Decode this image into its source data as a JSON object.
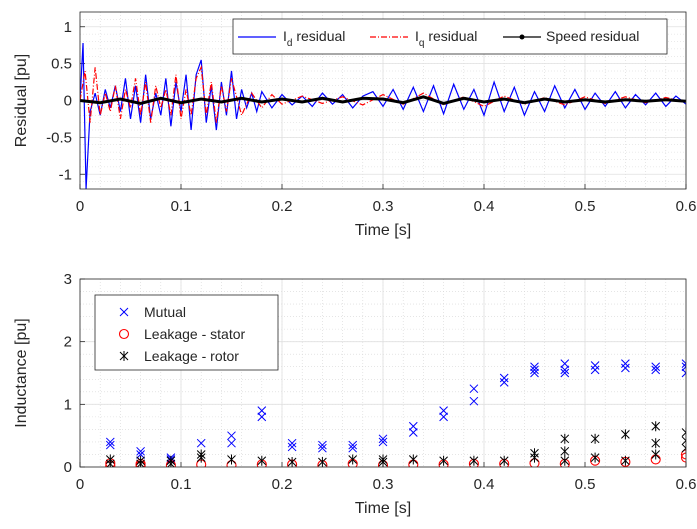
{
  "chart_data": [
    {
      "type": "line",
      "xlabel": "Time [s]",
      "ylabel": "Residual [pu]",
      "xlim": [
        0,
        0.6
      ],
      "ylim": [
        -1.2,
        1.2
      ],
      "xticks": [
        "0",
        "0.1",
        "0.2",
        "0.3",
        "0.4",
        "0.5",
        "0.6"
      ],
      "yticks": [
        "-1",
        "-0.5",
        "0",
        "0.5",
        "1"
      ],
      "grid": true,
      "legend_location": "top-right",
      "legend": [
        {
          "base": "I",
          "sub": "d",
          "rest": " residual",
          "color": "#0000ff",
          "style": "solid"
        },
        {
          "base": "I",
          "sub": "q",
          "rest": " residual",
          "color": "#ff0000",
          "style": "dashdot"
        },
        {
          "base": "Speed residual",
          "sub": "",
          "rest": "",
          "color": "#000000",
          "style": "solid-dot"
        }
      ],
      "series": [
        {
          "name": "Id residual",
          "color": "#0000ff",
          "x": [
            0.0,
            0.003,
            0.006,
            0.01,
            0.015,
            0.02,
            0.025,
            0.03,
            0.035,
            0.04,
            0.045,
            0.05,
            0.055,
            0.06,
            0.065,
            0.07,
            0.075,
            0.08,
            0.085,
            0.09,
            0.095,
            0.1,
            0.105,
            0.11,
            0.115,
            0.12,
            0.125,
            0.13,
            0.135,
            0.14,
            0.145,
            0.15,
            0.155,
            0.16,
            0.165,
            0.17,
            0.175,
            0.18,
            0.19,
            0.2,
            0.21,
            0.22,
            0.23,
            0.24,
            0.25,
            0.26,
            0.27,
            0.28,
            0.29,
            0.3,
            0.31,
            0.32,
            0.33,
            0.34,
            0.35,
            0.36,
            0.37,
            0.38,
            0.39,
            0.4,
            0.41,
            0.42,
            0.43,
            0.44,
            0.45,
            0.46,
            0.47,
            0.48,
            0.49,
            0.5,
            0.51,
            0.52,
            0.53,
            0.54,
            0.55,
            0.56,
            0.57,
            0.58,
            0.59,
            0.6
          ],
          "y": [
            0.0,
            0.78,
            -1.2,
            -0.15,
            0.1,
            -0.2,
            0.15,
            -0.1,
            0.2,
            -0.15,
            0.3,
            -0.25,
            0.2,
            -0.3,
            0.35,
            -0.25,
            0.1,
            -0.2,
            0.3,
            -0.35,
            0.25,
            -0.15,
            0.35,
            -0.4,
            0.35,
            0.55,
            -0.3,
            0.2,
            -0.4,
            0.25,
            -0.2,
            0.4,
            -0.25,
            0.15,
            -0.1,
            0.1,
            -0.15,
            0.12,
            -0.1,
            0.08,
            -0.06,
            0.06,
            -0.08,
            0.1,
            -0.05,
            0.08,
            -0.1,
            0.06,
            0.12,
            -0.08,
            0.15,
            -0.12,
            0.18,
            -0.15,
            0.2,
            -0.18,
            0.22,
            -0.12,
            0.15,
            -0.2,
            0.25,
            -0.15,
            0.18,
            -0.2,
            0.12,
            -0.15,
            0.2,
            -0.1,
            0.15,
            -0.12,
            0.1,
            -0.08,
            0.12,
            -0.1,
            0.08,
            -0.06,
            0.1,
            -0.08,
            0.06,
            -0.05
          ]
        },
        {
          "name": "Iq residual",
          "color": "#ff0000",
          "x": [
            0.0,
            0.005,
            0.01,
            0.015,
            0.02,
            0.025,
            0.03,
            0.035,
            0.04,
            0.045,
            0.05,
            0.055,
            0.06,
            0.065,
            0.07,
            0.075,
            0.08,
            0.085,
            0.09,
            0.095,
            0.1,
            0.105,
            0.11,
            0.115,
            0.12,
            0.125,
            0.13,
            0.135,
            0.14,
            0.145,
            0.15,
            0.16,
            0.17,
            0.18,
            0.19,
            0.2,
            0.22,
            0.24,
            0.26,
            0.28,
            0.3,
            0.32,
            0.34,
            0.36,
            0.38,
            0.4,
            0.42,
            0.44,
            0.46,
            0.48,
            0.5,
            0.52,
            0.54,
            0.56,
            0.58,
            0.6
          ],
          "y": [
            0.0,
            0.4,
            -0.3,
            0.45,
            -0.2,
            0.1,
            -0.15,
            0.2,
            -0.25,
            0.15,
            -0.1,
            0.3,
            -0.2,
            0.25,
            -0.3,
            0.2,
            -0.1,
            0.15,
            -0.2,
            0.35,
            -0.25,
            0.15,
            -0.2,
            0.3,
            0.45,
            -0.2,
            0.25,
            -0.3,
            0.2,
            -0.15,
            0.3,
            -0.2,
            0.1,
            -0.1,
            0.08,
            -0.05,
            0.06,
            -0.04,
            0.05,
            -0.06,
            0.08,
            -0.05,
            0.1,
            -0.06,
            0.05,
            -0.08,
            0.06,
            -0.05,
            0.04,
            -0.06,
            0.05,
            -0.04,
            0.05,
            -0.03,
            0.04,
            -0.02
          ]
        },
        {
          "name": "Speed residual",
          "color": "#000000",
          "x": [
            0.0,
            0.02,
            0.04,
            0.06,
            0.08,
            0.1,
            0.12,
            0.14,
            0.16,
            0.18,
            0.2,
            0.22,
            0.24,
            0.26,
            0.28,
            0.3,
            0.32,
            0.34,
            0.36,
            0.38,
            0.4,
            0.42,
            0.44,
            0.46,
            0.48,
            0.5,
            0.52,
            0.54,
            0.56,
            0.58,
            0.6
          ],
          "y": [
            0.0,
            -0.03,
            0.02,
            -0.04,
            0.03,
            -0.03,
            0.02,
            -0.02,
            0.03,
            -0.02,
            0.02,
            -0.02,
            0.03,
            -0.02,
            0.03,
            0.02,
            -0.03,
            0.05,
            -0.04,
            0.03,
            -0.02,
            0.02,
            -0.03,
            0.02,
            -0.02,
            0.01,
            -0.02,
            0.01,
            -0.01,
            0.01,
            -0.01
          ]
        }
      ]
    },
    {
      "type": "scatter",
      "xlabel": "Time [s]",
      "ylabel": "Inductance [pu]",
      "xlim": [
        0,
        0.6
      ],
      "ylim": [
        0,
        3
      ],
      "xticks": [
        "0",
        "0.1",
        "0.2",
        "0.3",
        "0.4",
        "0.5",
        "0.6"
      ],
      "yticks": [
        "0",
        "1",
        "2",
        "3"
      ],
      "grid": true,
      "legend_location": "top-left",
      "legend": [
        {
          "label": "Mutual",
          "color": "#0000ff",
          "marker": "x"
        },
        {
          "label": "Leakage - stator",
          "color": "#ff0000",
          "marker": "o"
        },
        {
          "label": "Leakage - rotor",
          "color": "#000000",
          "marker": "*"
        }
      ],
      "series": [
        {
          "name": "Mutual",
          "color": "#0000ff",
          "marker": "x",
          "x": [
            0.03,
            0.03,
            0.06,
            0.06,
            0.09,
            0.09,
            0.12,
            0.15,
            0.15,
            0.18,
            0.18,
            0.21,
            0.21,
            0.24,
            0.24,
            0.27,
            0.27,
            0.3,
            0.3,
            0.33,
            0.33,
            0.36,
            0.36,
            0.39,
            0.39,
            0.42,
            0.42,
            0.45,
            0.45,
            0.45,
            0.48,
            0.48,
            0.48,
            0.51,
            0.51,
            0.54,
            0.54,
            0.57,
            0.57,
            0.6,
            0.6,
            0.6
          ],
          "y": [
            0.35,
            0.4,
            0.2,
            0.25,
            0.12,
            0.15,
            0.38,
            0.38,
            0.5,
            0.8,
            0.9,
            0.32,
            0.38,
            0.3,
            0.35,
            0.3,
            0.35,
            0.4,
            0.45,
            0.55,
            0.65,
            0.8,
            0.9,
            1.05,
            1.25,
            1.35,
            1.42,
            1.5,
            1.55,
            1.6,
            1.5,
            1.55,
            1.65,
            1.55,
            1.62,
            1.58,
            1.65,
            1.55,
            1.6,
            1.5,
            1.6,
            1.65
          ]
        },
        {
          "name": "Leakage - stator",
          "color": "#ff0000",
          "marker": "o",
          "x": [
            0.03,
            0.03,
            0.06,
            0.06,
            0.09,
            0.12,
            0.15,
            0.18,
            0.21,
            0.24,
            0.27,
            0.3,
            0.33,
            0.36,
            0.39,
            0.42,
            0.45,
            0.48,
            0.51,
            0.54,
            0.57,
            0.6,
            0.6
          ],
          "y": [
            0.02,
            0.06,
            0.02,
            0.05,
            0.03,
            0.04,
            0.03,
            0.04,
            0.04,
            0.03,
            0.05,
            0.03,
            0.04,
            0.04,
            0.05,
            0.05,
            0.06,
            0.05,
            0.1,
            0.08,
            0.12,
            0.15,
            0.2
          ]
        },
        {
          "name": "Leakage - rotor",
          "color": "#000000",
          "marker": "*",
          "x": [
            0.03,
            0.03,
            0.06,
            0.06,
            0.09,
            0.09,
            0.12,
            0.12,
            0.15,
            0.18,
            0.21,
            0.24,
            0.27,
            0.3,
            0.3,
            0.33,
            0.36,
            0.39,
            0.42,
            0.45,
            0.45,
            0.48,
            0.48,
            0.48,
            0.51,
            0.51,
            0.54,
            0.54,
            0.57,
            0.57,
            0.57,
            0.6,
            0.6,
            0.6
          ],
          "y": [
            0.05,
            0.12,
            0.05,
            0.1,
            0.05,
            0.1,
            0.15,
            0.2,
            0.12,
            0.1,
            0.08,
            0.08,
            0.12,
            0.08,
            0.12,
            0.12,
            0.1,
            0.1,
            0.1,
            0.15,
            0.22,
            0.1,
            0.25,
            0.45,
            0.15,
            0.45,
            0.1,
            0.52,
            0.2,
            0.38,
            0.65,
            0.3,
            0.42,
            0.55
          ]
        }
      ]
    }
  ]
}
